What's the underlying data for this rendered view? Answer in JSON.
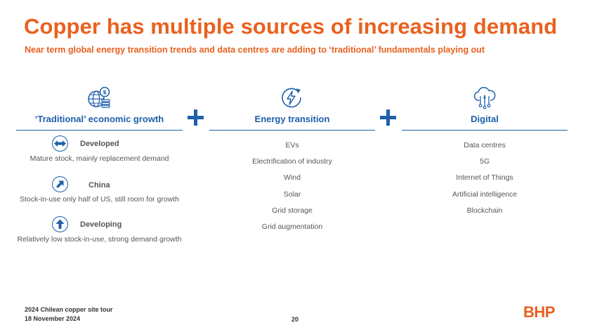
{
  "title": "Copper has multiple sources of increasing demand",
  "subtitle": "Near term global energy transition trends and data centres are adding to ‘traditional’ fundamentals playing out",
  "colors": {
    "accent": "#E8611F",
    "primary_blue": "#1F5FA9",
    "body_text": "#555555"
  },
  "columns": {
    "traditional": {
      "heading": "‘Traditional’ economic growth",
      "icon": "globe-coins-icon",
      "segments": [
        {
          "title": "Developed",
          "description": "Mature stock, mainly replacement demand",
          "icon": "horizontal-arrows-icon"
        },
        {
          "title": "China",
          "description": "Stock-in-use only half of US, still room for growth",
          "icon": "diagonal-up-arrow-icon"
        },
        {
          "title": "Developing",
          "description": "Relatively low stock-in-use, strong demand growth",
          "icon": "up-arrow-icon"
        }
      ]
    },
    "energy": {
      "heading": "Energy transition",
      "icon": "lightning-refresh-icon",
      "items": [
        "EVs",
        "Electrification of industry",
        "Wind",
        "Solar",
        "Grid storage",
        "Grid augmentation"
      ]
    },
    "digital": {
      "heading": "Digital",
      "icon": "cloud-network-icon",
      "items": [
        "Data centres",
        "5G",
        "Internet of Things",
        "Artificial intelligence",
        "Blockchain"
      ]
    }
  },
  "footer": {
    "event": "2024 Chilean copper site tour",
    "date": "18 November 2024",
    "page_number": "20",
    "logo": "BHP"
  }
}
